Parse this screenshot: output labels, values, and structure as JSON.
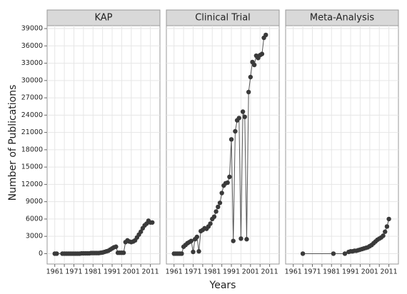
{
  "chart_data": [
    {
      "type": "line",
      "title": "KAP",
      "y_label": "Number of Publications",
      "color": "#3a3a3a",
      "x": [
        1961,
        1962,
        1965,
        1966,
        1967,
        1968,
        1969,
        1970,
        1971,
        1972,
        1973,
        1974,
        1975,
        1976,
        1977,
        1978,
        1979,
        1980,
        1981,
        1982,
        1983,
        1984,
        1985,
        1986,
        1987,
        1988,
        1989,
        1990,
        1991,
        1992,
        1993,
        1994,
        1995,
        1996,
        1997,
        1998,
        1999,
        2000,
        2001,
        2002,
        2003,
        2004,
        2005,
        2006,
        2007,
        2008,
        2009,
        2010,
        2011,
        2012
      ],
      "values": [
        0,
        0,
        0,
        0,
        0,
        0,
        0,
        0,
        0,
        0,
        0,
        0,
        50,
        50,
        50,
        50,
        50,
        100,
        100,
        100,
        100,
        100,
        150,
        200,
        300,
        400,
        500,
        700,
        900,
        1100,
        1200,
        150,
        150,
        150,
        150,
        2000,
        2300,
        2100,
        2000,
        2100,
        2300,
        2800,
        3300,
        3800,
        4400,
        4900,
        5200,
        5700,
        5400,
        5400
      ],
      "xlim": [
        1957,
        2016
      ],
      "xticks": [
        1961,
        1966,
        1971,
        1976,
        1981,
        1986,
        1991,
        1996,
        2001,
        2006,
        2011
      ],
      "ylim": [
        -1800,
        39500
      ],
      "yticks": [
        0,
        3000,
        6000,
        9000,
        12000,
        15000,
        18000,
        21000,
        24000,
        27000,
        30000,
        33000,
        36000,
        39000
      ]
    },
    {
      "type": "line",
      "title": "Clinical Trial",
      "x_label": "Years",
      "color": "#3a3a3a",
      "x": [
        1961,
        1962,
        1963,
        1964,
        1965,
        1966,
        1967,
        1968,
        1969,
        1970,
        1971,
        1972,
        1973,
        1974,
        1975,
        1976,
        1977,
        1978,
        1979,
        1980,
        1981,
        1982,
        1983,
        1984,
        1985,
        1986,
        1987,
        1988,
        1989,
        1990,
        1991,
        1992,
        1993,
        1994,
        1995,
        1996,
        1997,
        1998,
        1999,
        2000,
        2001,
        2002,
        2003,
        2004,
        2005,
        2006,
        2007,
        2008,
        2009,
        2010,
        2011,
        2012
      ],
      "values": [
        0,
        0,
        0,
        0,
        0,
        1200,
        1500,
        1800,
        2000,
        2200,
        300,
        2500,
        2900,
        400,
        3900,
        4100,
        4400,
        4300,
        4700,
        5200,
        6000,
        6400,
        7300,
        8100,
        8800,
        10500,
        11800,
        12200,
        12300,
        13300,
        19800,
        2200,
        21200,
        23100,
        23500,
        2600,
        24600,
        23700,
        2500,
        28000,
        30600,
        33200,
        32700,
        34300,
        33900,
        34400,
        34600,
        37400,
        37900,
        null,
        null,
        null
      ],
      "xlim": [
        1957,
        2016
      ],
      "xticks": [
        1961,
        1966,
        1971,
        1976,
        1981,
        1986,
        1991,
        1996,
        2001,
        2006,
        2011
      ]
    },
    {
      "type": "line",
      "title": "Meta-Analysis",
      "color": "#3a3a3a",
      "x": [
        1966,
        1982,
        1988,
        1990,
        1991,
        1992,
        1993,
        1994,
        1995,
        1996,
        1997,
        1998,
        1999,
        2000,
        2001,
        2002,
        2003,
        2004,
        2005,
        2006,
        2007,
        2008,
        2009,
        2010,
        2011
      ],
      "values": [
        0,
        0,
        0,
        300,
        400,
        400,
        500,
        500,
        600,
        700,
        800,
        900,
        1000,
        1100,
        1300,
        1500,
        1800,
        2100,
        2400,
        2600,
        2800,
        3100,
        3800,
        4700,
        6000
      ],
      "xlim": [
        1957,
        2016
      ],
      "xticks": [
        1961,
        1966,
        1971,
        1976,
        1981,
        1986,
        1991,
        1996,
        2001,
        2006,
        2011
      ]
    }
  ]
}
